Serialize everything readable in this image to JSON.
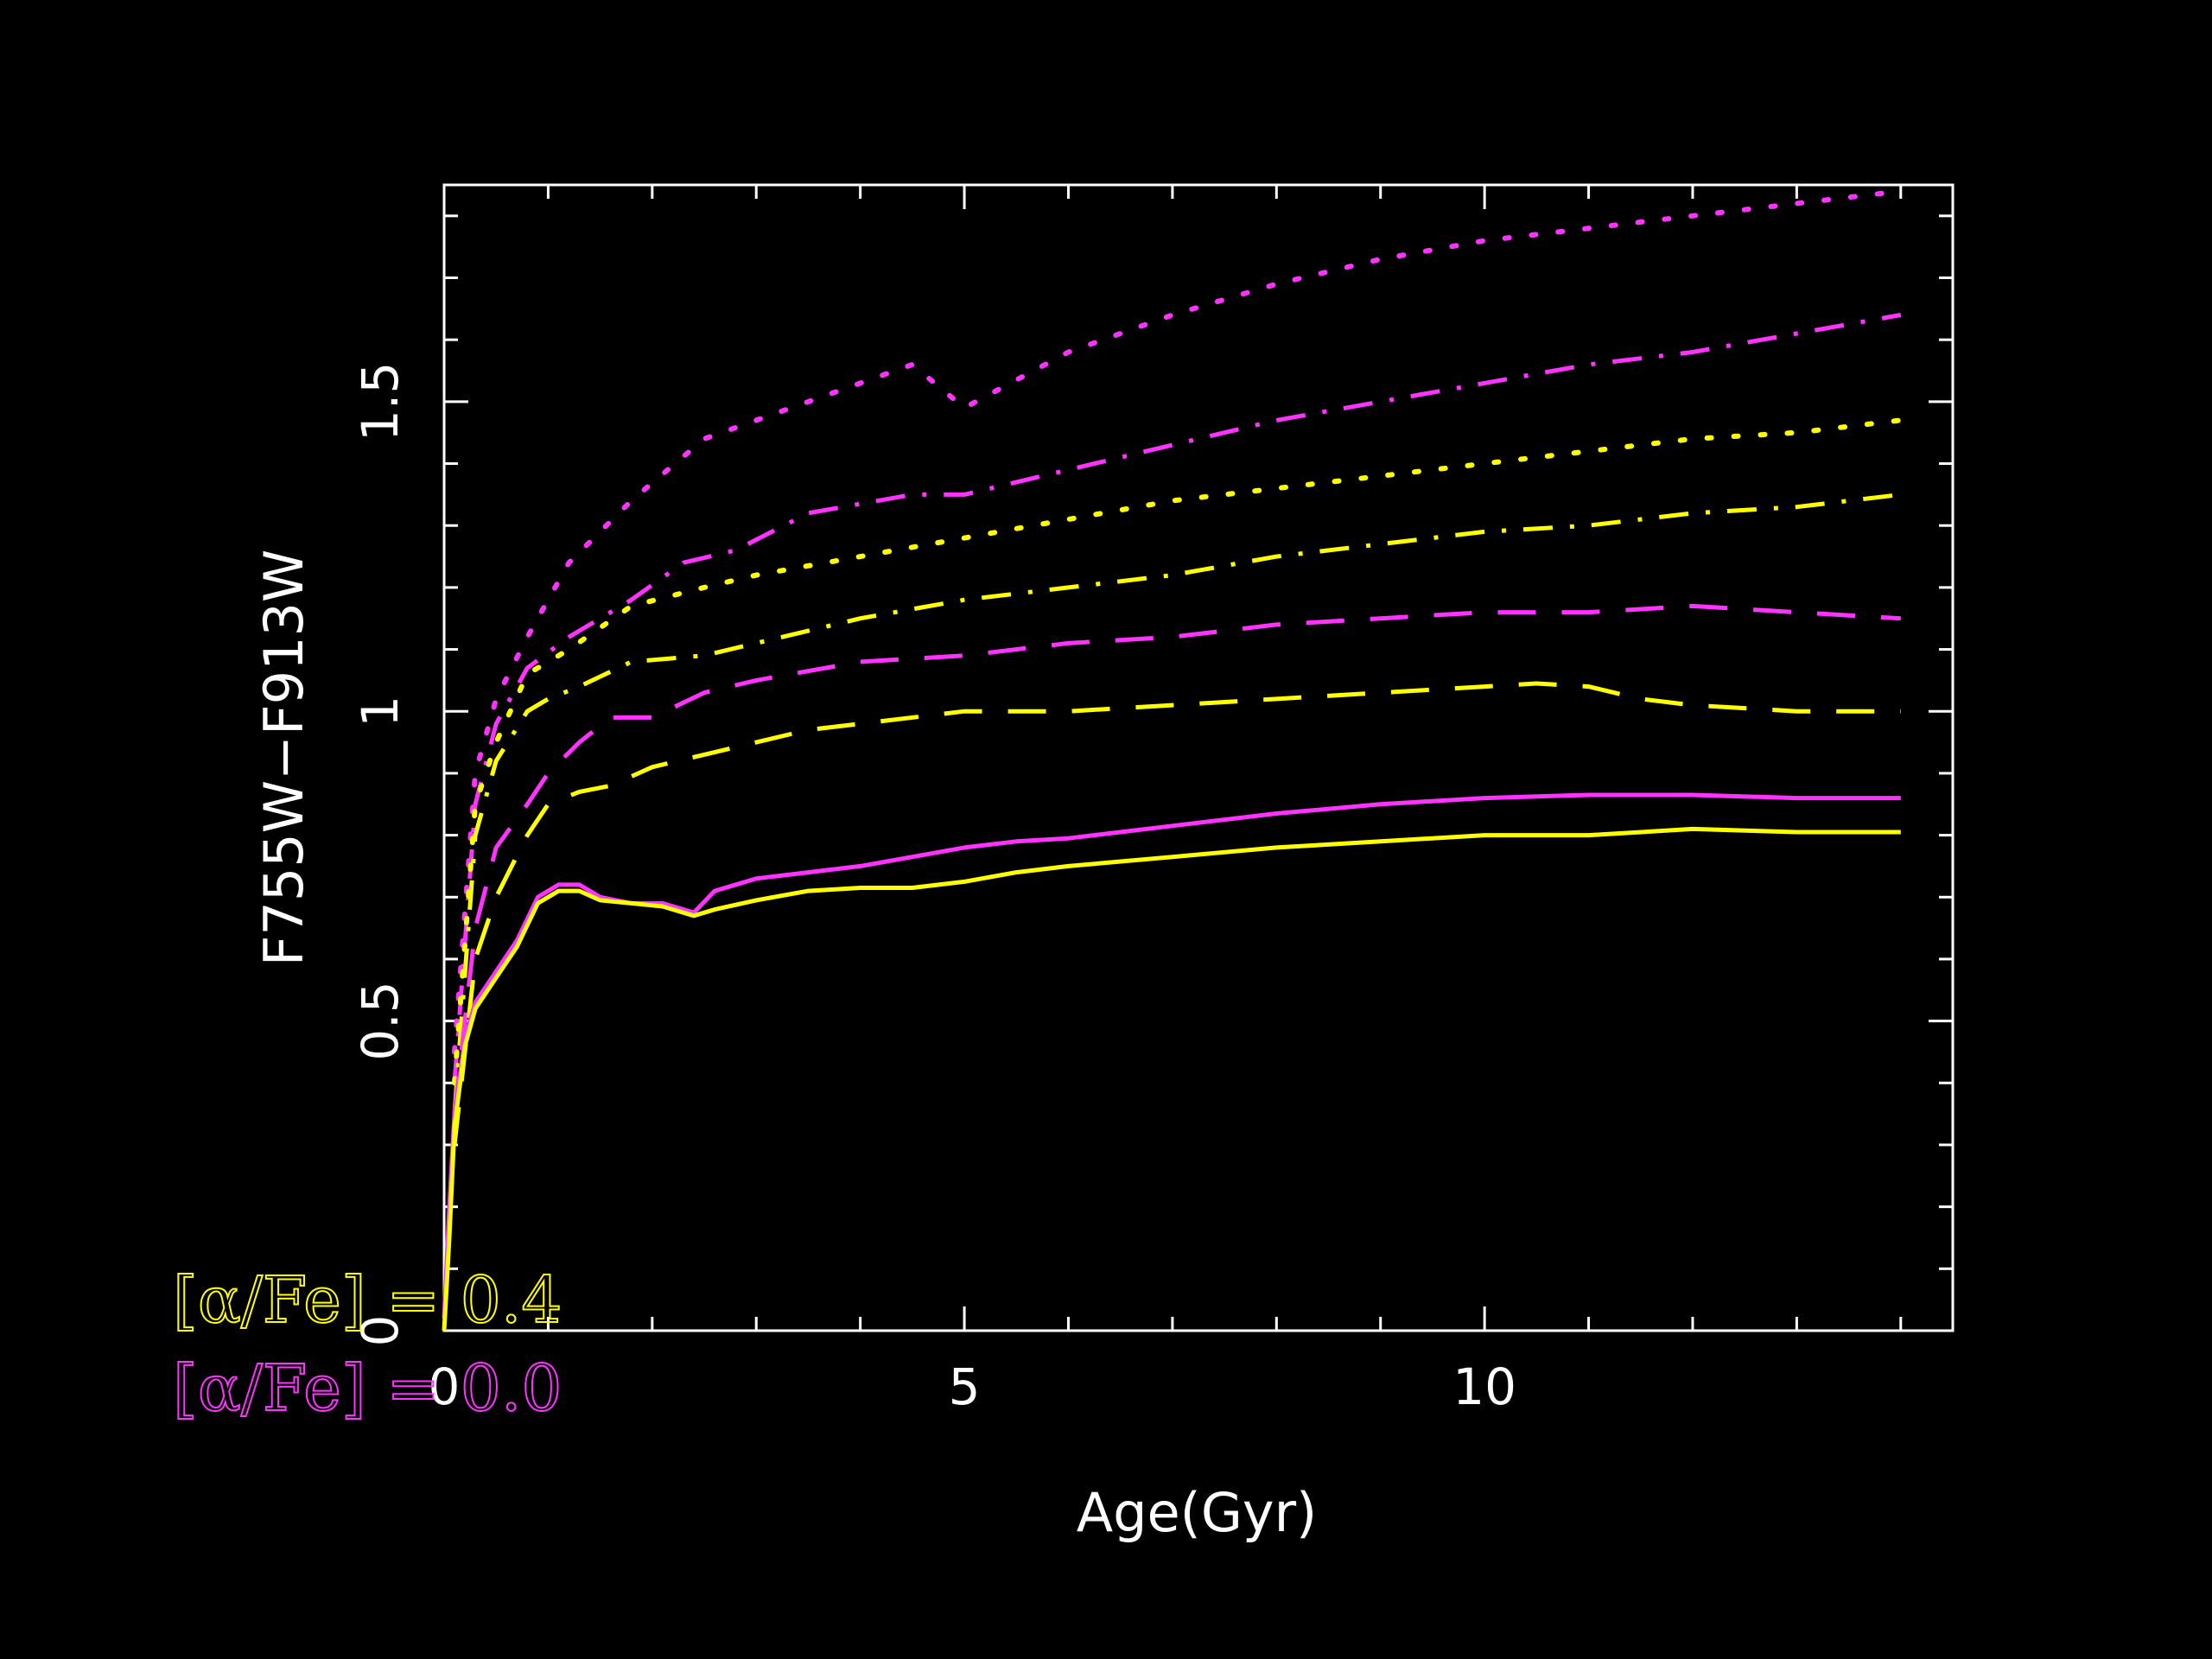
{
  "chart_data": {
    "type": "line",
    "xlabel": "Age(Gyr)",
    "ylabel": "F755W−F913W",
    "xlim": [
      0,
      14.5
    ],
    "ylim": [
      0,
      1.85
    ],
    "xticks": [
      0,
      5,
      10
    ],
    "xtick_labels": [
      "0",
      "5",
      "10"
    ],
    "yticks": [
      0,
      0.5,
      1,
      1.5
    ],
    "ytick_labels": [
      "0",
      "0.5",
      "1",
      "1.5"
    ],
    "grid": false,
    "background": "#000000",
    "axis_color": "#ffffff",
    "legend": {
      "placement": "bottom-left",
      "entries": [
        {
          "label": "[α/Fe] = 0.4",
          "color": "#ffff00"
        },
        {
          "label": "[α/Fe] = 0.0",
          "color": "#ff33ff"
        }
      ]
    },
    "series": [
      {
        "color": "#ff33ff",
        "dash": "dotted",
        "x": [
          0.1,
          0.3,
          0.5,
          0.8,
          1.2,
          1.8,
          2.5,
          3.0,
          4.0,
          4.5,
          5.0,
          6.0,
          7.0,
          8.0,
          9.0,
          10.0,
          11.0,
          12.0,
          13.0,
          14.0
        ],
        "y": [
          0.45,
          0.9,
          1.02,
          1.12,
          1.24,
          1.34,
          1.44,
          1.47,
          1.53,
          1.56,
          1.49,
          1.58,
          1.64,
          1.69,
          1.73,
          1.76,
          1.78,
          1.8,
          1.82,
          1.84
        ]
      },
      {
        "color": "#ff33ff",
        "dash": "dash-dot",
        "x": [
          0.1,
          0.3,
          0.5,
          0.8,
          1.2,
          1.8,
          2.3,
          2.8,
          3.5,
          4.5,
          5.0,
          6.0,
          7.0,
          8.0,
          9.0,
          10.0,
          11.0,
          12.0,
          13.0,
          14.0
        ],
        "y": [
          0.4,
          0.85,
          0.98,
          1.07,
          1.12,
          1.18,
          1.24,
          1.26,
          1.32,
          1.35,
          1.35,
          1.39,
          1.43,
          1.47,
          1.5,
          1.53,
          1.56,
          1.58,
          1.61,
          1.64
        ]
      },
      {
        "color": "#ffff00",
        "dash": "dotted",
        "x": [
          0.1,
          0.3,
          0.5,
          0.8,
          1.2,
          1.8,
          2.5,
          3.0,
          4.0,
          5.0,
          6.0,
          7.0,
          8.0,
          9.0,
          10.0,
          11.0,
          12.0,
          13.0,
          14.0
        ],
        "y": [
          0.4,
          0.85,
          0.95,
          1.06,
          1.1,
          1.17,
          1.2,
          1.22,
          1.25,
          1.28,
          1.31,
          1.34,
          1.36,
          1.38,
          1.4,
          1.42,
          1.44,
          1.45,
          1.47
        ]
      },
      {
        "color": "#ffff00",
        "dash": "dash-dot",
        "x": [
          0.1,
          0.3,
          0.5,
          0.8,
          1.0,
          1.3,
          1.8,
          2.5,
          3.0,
          4.0,
          5.0,
          6.0,
          7.0,
          8.0,
          9.0,
          10.0,
          11.0,
          12.0,
          13.0,
          14.0
        ],
        "y": [
          0.35,
          0.8,
          0.92,
          1.0,
          1.02,
          1.04,
          1.08,
          1.09,
          1.11,
          1.15,
          1.18,
          1.2,
          1.22,
          1.25,
          1.27,
          1.29,
          1.3,
          1.32,
          1.33,
          1.35
        ]
      },
      {
        "color": "#ff33ff",
        "dash": "dashed",
        "x": [
          0.1,
          0.3,
          0.5,
          0.8,
          1.0,
          1.3,
          1.6,
          2.0,
          2.5,
          3.0,
          4.0,
          5.0,
          6.0,
          7.0,
          8.0,
          9.0,
          10.0,
          11.0,
          12.0,
          13.0,
          14.0
        ],
        "y": [
          0.35,
          0.65,
          0.78,
          0.85,
          0.9,
          0.95,
          0.99,
          0.99,
          1.03,
          1.05,
          1.08,
          1.09,
          1.11,
          1.12,
          1.14,
          1.15,
          1.16,
          1.16,
          1.17,
          1.16,
          1.15
        ]
      },
      {
        "color": "#ffff00",
        "dash": "dashed",
        "x": [
          0.1,
          0.3,
          0.5,
          0.8,
          1.0,
          1.3,
          1.6,
          2.0,
          2.5,
          3.0,
          3.5,
          4.0,
          5.0,
          6.0,
          7.0,
          8.0,
          9.0,
          10.0,
          10.5,
          11.0,
          11.5,
          12.0,
          13.0,
          14.0
        ],
        "y": [
          0.3,
          0.6,
          0.7,
          0.8,
          0.85,
          0.87,
          0.88,
          0.91,
          0.93,
          0.95,
          0.97,
          0.98,
          1.0,
          1.0,
          1.01,
          1.02,
          1.03,
          1.04,
          1.045,
          1.04,
          1.02,
          1.01,
          1.0,
          1.0
        ]
      },
      {
        "color": "#ff33ff",
        "dash": "solid",
        "x": [
          0.0,
          0.05,
          0.1,
          0.2,
          0.3,
          0.5,
          0.7,
          0.9,
          1.1,
          1.3,
          1.5,
          1.8,
          2.1,
          2.4,
          2.6,
          3.0,
          3.5,
          4.0,
          4.5,
          5.0,
          5.5,
          6.0,
          7.0,
          8.0,
          9.0,
          10.0,
          11.0,
          12.0,
          13.0,
          14.0
        ],
        "y": [
          0.02,
          0.2,
          0.35,
          0.47,
          0.53,
          0.58,
          0.63,
          0.7,
          0.72,
          0.72,
          0.7,
          0.69,
          0.69,
          0.675,
          0.71,
          0.73,
          0.74,
          0.75,
          0.765,
          0.78,
          0.79,
          0.795,
          0.815,
          0.835,
          0.85,
          0.86,
          0.865,
          0.865,
          0.86,
          0.86
        ]
      },
      {
        "color": "#ffff00",
        "dash": "solid",
        "x": [
          0.0,
          0.05,
          0.1,
          0.2,
          0.3,
          0.5,
          0.7,
          0.9,
          1.1,
          1.3,
          1.5,
          1.8,
          2.1,
          2.4,
          2.6,
          3.0,
          3.5,
          4.0,
          4.5,
          5.0,
          5.5,
          6.0,
          7.0,
          8.0,
          9.0,
          10.0,
          11.0,
          12.0,
          13.0,
          14.0
        ],
        "y": [
          0.0,
          0.15,
          0.33,
          0.46,
          0.52,
          0.57,
          0.62,
          0.69,
          0.71,
          0.71,
          0.695,
          0.69,
          0.685,
          0.67,
          0.68,
          0.695,
          0.71,
          0.715,
          0.715,
          0.725,
          0.74,
          0.75,
          0.765,
          0.78,
          0.79,
          0.8,
          0.8,
          0.81,
          0.805,
          0.805
        ]
      }
    ]
  }
}
